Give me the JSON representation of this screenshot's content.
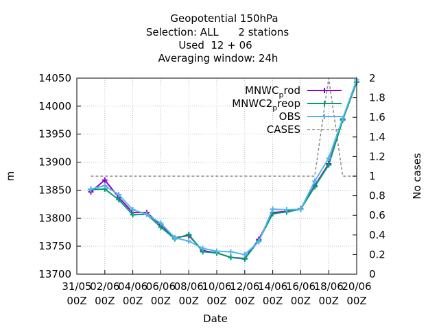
{
  "chart_data": {
    "type": "line",
    "title_lines": [
      "Geopotential 150hPa",
      "Selection: ALL      2 stations",
      "Used  12 + 06",
      "Averaging window: 24h"
    ],
    "xlabel": "Date",
    "ylabel": "m",
    "y2label": "No cases",
    "x_tick_labels": [
      {
        "date": "31/05",
        "time": "00Z"
      },
      {
        "date": "02/06",
        "time": "00Z"
      },
      {
        "date": "04/06",
        "time": "00Z"
      },
      {
        "date": "06/06",
        "time": "00Z"
      },
      {
        "date": "08/06",
        "time": "00Z"
      },
      {
        "date": "10/06",
        "time": "00Z"
      },
      {
        "date": "12/06",
        "time": "00Z"
      },
      {
        "date": "14/06",
        "time": "00Z"
      },
      {
        "date": "16/06",
        "time": "00Z"
      },
      {
        "date": "18/06",
        "time": "00Z"
      },
      {
        "date": "20/06",
        "time": "00Z"
      }
    ],
    "xlim_days": [
      0,
      20
    ],
    "ylim": [
      13700,
      14050
    ],
    "y_ticks": [
      "13700",
      "13750",
      "13800",
      "13850",
      "13900",
      "13950",
      "14000",
      "14050"
    ],
    "y2lim": [
      0,
      2
    ],
    "y2_ticks": [
      "0",
      "0.2",
      "0.4",
      "0.6",
      "0.8",
      "1",
      "1.2",
      "1.4",
      "1.6",
      "1.8",
      "2"
    ],
    "grid": true,
    "legend_position": "top-right",
    "x_days": [
      1,
      2,
      3,
      4,
      5,
      6,
      7,
      8,
      9,
      10,
      11,
      12,
      13,
      14,
      15,
      16,
      17,
      18,
      19,
      20
    ],
    "series": [
      {
        "name": "MNWC prod",
        "name_main": "MNWC",
        "name_sub": "p",
        "name_tail": "rod",
        "color": "#9400d3",
        "marker": "plus",
        "values": [
          13847,
          13868,
          13837,
          13810,
          13810,
          13788,
          13765,
          13769,
          13742,
          13738,
          13730,
          13728,
          13762,
          13810,
          13812,
          13817,
          13858,
          13897,
          13976,
          14043
        ]
      },
      {
        "name": "MNWC2 preop",
        "name_main": "MNWC2",
        "name_sub": "p",
        "name_tail": "reop",
        "color": "#009e73",
        "marker": "plus",
        "values": [
          13851,
          13852,
          13833,
          13806,
          13807,
          13784,
          13763,
          13771,
          13740,
          13738,
          13730,
          13727,
          13760,
          13808,
          13811,
          13816,
          13856,
          13895,
          13975,
          14043
        ]
      },
      {
        "name": "OBS",
        "color": "#56b4e9",
        "marker": "plus",
        "values": [
          13852,
          13858,
          13842,
          13815,
          13807,
          13791,
          13765,
          13759,
          13746,
          13741,
          13740,
          13735,
          13758,
          13816,
          13815,
          13816,
          13866,
          13907,
          13978,
          14047
        ]
      }
    ],
    "cases": {
      "name": "CASES",
      "color": "#888888",
      "axis": "y2",
      "points": [
        [
          1,
          1
        ],
        [
          17,
          1
        ],
        [
          18,
          2
        ],
        [
          19,
          1
        ],
        [
          20,
          1
        ]
      ]
    }
  }
}
